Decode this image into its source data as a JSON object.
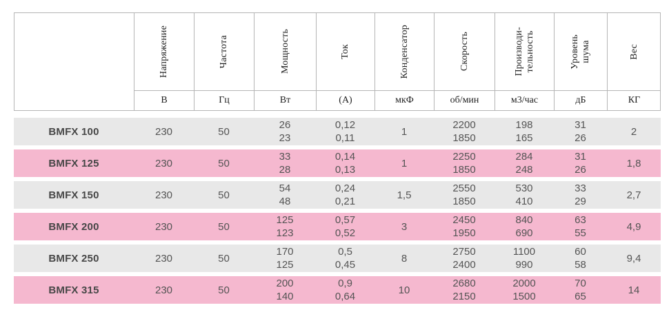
{
  "table": {
    "columns": [
      {
        "label": "",
        "unit": ""
      },
      {
        "label": "Напряжение",
        "unit": "В"
      },
      {
        "label": "Частота",
        "unit": "Гц"
      },
      {
        "label": "Мощность",
        "unit": "Вт"
      },
      {
        "label": "Ток",
        "unit": "(А)"
      },
      {
        "label": "Конденсатор",
        "unit": "мкФ"
      },
      {
        "label": "Скорость",
        "unit": "об/мин"
      },
      {
        "label": "Производи-\nтельность",
        "unit": "м3/час"
      },
      {
        "label": "Уровень\nшума",
        "unit": "дБ"
      },
      {
        "label": "Вес",
        "unit": "КГ"
      }
    ],
    "rows": [
      {
        "name": "BMFX 100",
        "values": [
          "230",
          "50",
          "26\n23",
          "0,12\n0,11",
          "1",
          "2200\n1850",
          "198\n165",
          "31\n26",
          "2"
        ]
      },
      {
        "name": "BMFX 125",
        "values": [
          "230",
          "50",
          "33\n28",
          "0,14\n0,13",
          "1",
          "2250\n1850",
          "284\n248",
          "31\n26",
          "1,8"
        ]
      },
      {
        "name": "BMFX 150",
        "values": [
          "230",
          "50",
          "54\n48",
          "0,24\n0,21",
          "1,5",
          "2550\n1850",
          "530\n410",
          "33\n29",
          "2,7"
        ]
      },
      {
        "name": "BMFX 200",
        "values": [
          "230",
          "50",
          "125\n123",
          "0,57\n0,52",
          "3",
          "2450\n1950",
          "840\n690",
          "63\n55",
          "4,9"
        ]
      },
      {
        "name": "BMFX 250",
        "values": [
          "230",
          "50",
          "170\n125",
          "0,5\n0,45",
          "8",
          "2750\n2400",
          "1100\n990",
          "60\n58",
          "9,4"
        ]
      },
      {
        "name": "BMFX 315",
        "values": [
          "230",
          "50",
          "200\n140",
          "0,9\n0,64",
          "10",
          "2680\n2150",
          "2000\n1500",
          "70\n65",
          "14"
        ]
      }
    ],
    "colors": {
      "row_gray": "#e8e8e8",
      "row_pink": "#f5b8cf",
      "border": "#b5b5b5",
      "body_text": "#545454",
      "header_text": "#1e1e1e"
    }
  }
}
